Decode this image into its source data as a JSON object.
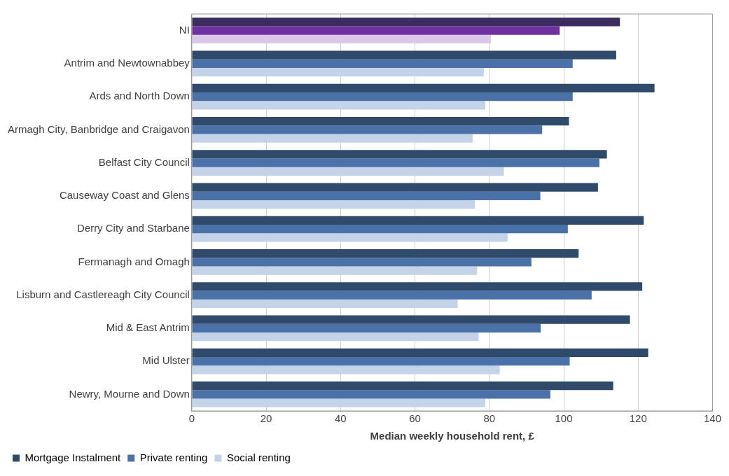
{
  "chart_data": {
    "type": "bar",
    "orientation": "horizontal",
    "xlabel": "Median weekly household rent, £",
    "categories": [
      "NI",
      "Antrim and Newtownabbey",
      "Ards and North Down",
      "Armagh City, Banbridge and Craigavon",
      "Belfast City Council",
      "Causeway Coast and Glens",
      "Derry City and Starbane",
      "Fermanagh and Omagh",
      "Lisburn and Castlereagh City Council",
      "Mid & East Antrim",
      "Mid Ulster",
      "Newry, Mourne and Down"
    ],
    "series": [
      {
        "name": "Mortgage Instalment",
        "color": "#2f4a6b",
        "colors": [
          "#3b2b5e",
          "#2f4a6b",
          "#2f4a6b",
          "#2f4a6b",
          "#2f4a6b",
          "#2f4a6b",
          "#2f4a6b",
          "#2f4a6b",
          "#2f4a6b",
          "#2f4a6b",
          "#2f4a6b",
          "#2f4a6b"
        ],
        "values": [
          115.1,
          114.1,
          124.4,
          101.4,
          111.6,
          109.2,
          121.5,
          104.0,
          121.1,
          117.8,
          122.7,
          113.3
        ]
      },
      {
        "name": "Private renting",
        "color": "#4a72a8",
        "colors": [
          "#7030a0",
          "#4a72a8",
          "#4a72a8",
          "#4a72a8",
          "#4a72a8",
          "#4a72a8",
          "#4a72a8",
          "#4a72a8",
          "#4a72a8",
          "#4a72a8",
          "#4a72a8",
          "#4a72a8"
        ],
        "values": [
          98.9,
          102.4,
          102.4,
          94.2,
          109.6,
          93.7,
          101.1,
          91.3,
          107.5,
          93.8,
          101.6,
          96.4
        ]
      },
      {
        "name": "Social renting",
        "color": "#c5d3e8",
        "colors": [
          "#d9c8e8",
          "#c5d3e8",
          "#c5d3e8",
          "#c5d3e8",
          "#c5d3e8",
          "#c5d3e8",
          "#c5d3e8",
          "#c5d3e8",
          "#c5d3e8",
          "#c5d3e8",
          "#c5d3e8",
          "#c5d3e8"
        ],
        "values": [
          80.4,
          78.5,
          78.9,
          75.5,
          83.9,
          76.1,
          84.9,
          76.7,
          71.5,
          77.1,
          82.8,
          78.9
        ]
      }
    ],
    "xlim": [
      0,
      140
    ],
    "xticks": [
      0,
      20,
      40,
      60,
      80,
      100,
      120,
      140
    ],
    "grid": "x",
    "legend": "bottom left"
  }
}
